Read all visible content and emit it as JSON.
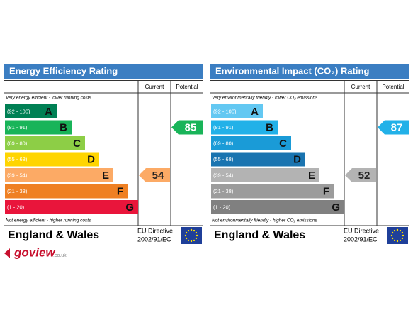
{
  "panels": [
    {
      "title": "Energy Efficiency Rating",
      "headers": [
        "Current",
        "Potential"
      ],
      "top_note": "Very energy efficient - lower running costs",
      "bottom_note": "Not energy efficient - higher running costs",
      "bands": [
        {
          "range": "(92 - 100)",
          "letter": "A",
          "color": "#008054"
        },
        {
          "range": "(81 - 91)",
          "letter": "B",
          "color": "#19b459"
        },
        {
          "range": "(69 - 80)",
          "letter": "C",
          "color": "#8dce46"
        },
        {
          "range": "(55 - 68)",
          "letter": "D",
          "color": "#ffd500"
        },
        {
          "range": "(39 - 54)",
          "letter": "E",
          "color": "#fcaa65"
        },
        {
          "range": "(21 - 38)",
          "letter": "F",
          "color": "#ef8023"
        },
        {
          "range": "(1 - 20)",
          "letter": "G",
          "color": "#e9153b"
        }
      ],
      "current": 54,
      "potential": 85,
      "region": "England & Wales",
      "directive": "EU Directive",
      "directive_code": "2002/91/EC"
    },
    {
      "title": "Environmental Impact (CO₂) Rating",
      "headers": [
        "Current",
        "Potential"
      ],
      "top_note": "Very environmentally friendly - lower CO₂ emissions",
      "bottom_note": "Not environmentally friendly - higher CO₂ emissions",
      "bands": [
        {
          "range": "(92 - 100)",
          "letter": "A",
          "color": "#63c8f2"
        },
        {
          "range": "(81 - 91)",
          "letter": "B",
          "color": "#22b1e8"
        },
        {
          "range": "(69 - 80)",
          "letter": "C",
          "color": "#1a9bd7"
        },
        {
          "range": "(55 - 68)",
          "letter": "D",
          "color": "#1a74b0"
        },
        {
          "range": "(39 - 54)",
          "letter": "E",
          "color": "#b3b3b3"
        },
        {
          "range": "(21 - 38)",
          "letter": "F",
          "color": "#9c9c9c"
        },
        {
          "range": "(1 - 20)",
          "letter": "G",
          "color": "#808080"
        }
      ],
      "current": 52,
      "potential": 87,
      "region": "England & Wales",
      "directive": "EU Directive",
      "directive_code": "2002/91/EC"
    }
  ],
  "logo": {
    "brand": "goview",
    "domain": ".co.uk"
  }
}
